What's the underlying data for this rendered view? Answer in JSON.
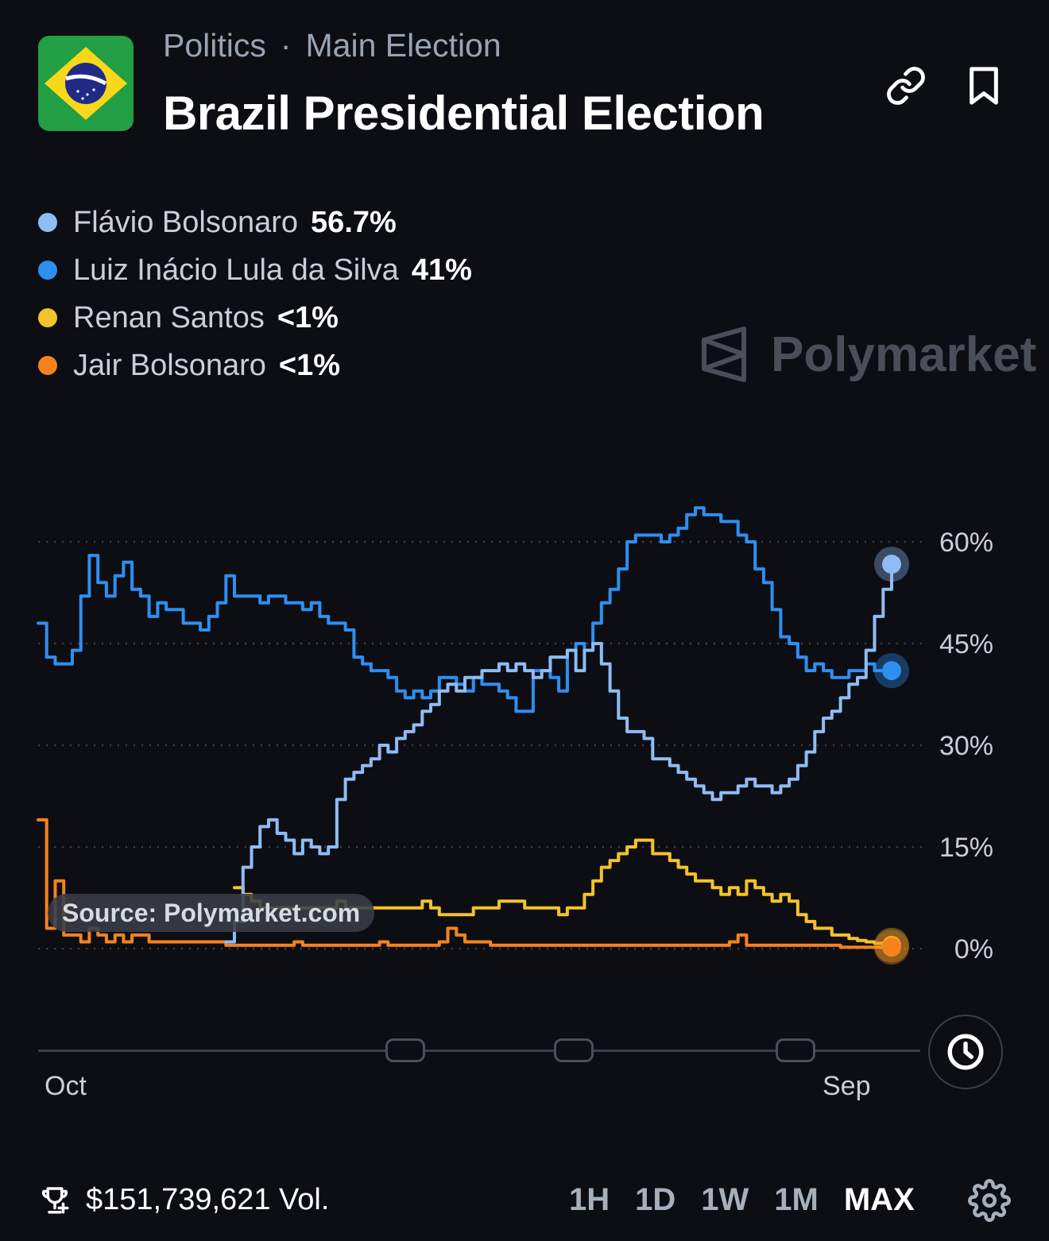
{
  "header": {
    "category": "Politics",
    "separator": "·",
    "subcategory": "Main Election",
    "title": "Brazil Presidential Election",
    "flag_icon": "brazil-flag"
  },
  "actions": {
    "link_icon": "link-icon",
    "bookmark_icon": "bookmark-icon"
  },
  "legend": [
    {
      "name": "Flávio Bolsonaro",
      "value": "56.7%",
      "color": "#8fbcf5"
    },
    {
      "name": "Luiz Inácio Lula da Silva",
      "value": "41%",
      "color": "#2e8ff0"
    },
    {
      "name": "Renan Santos",
      "value": "<1%",
      "color": "#f5c22a"
    },
    {
      "name": "Jair Bolsonaro",
      "value": "<1%",
      "color": "#f5821f"
    }
  ],
  "watermark": "Polymarket",
  "source_label": "Source: Polymarket.com",
  "x_axis": {
    "start_label": "Oct",
    "end_label": "Sep"
  },
  "footer": {
    "volume": "$151,739,621 Vol.",
    "ranges": [
      "1H",
      "1D",
      "1W",
      "1M",
      "MAX"
    ],
    "active_range": "MAX"
  },
  "chart_data": {
    "type": "line",
    "ylim": [
      0,
      70
    ],
    "yticks": [
      0,
      15,
      30,
      45,
      60
    ],
    "ytick_labels": [
      "0%",
      "15%",
      "30%",
      "45%",
      "60%"
    ],
    "grid": true,
    "x": [
      0,
      1,
      2,
      3,
      4,
      5,
      6,
      7,
      8,
      9,
      10,
      11,
      12,
      13,
      14,
      15,
      16,
      17,
      18,
      19,
      20,
      21,
      22,
      23,
      24,
      25,
      26,
      27,
      28,
      29,
      30,
      31,
      32,
      33,
      34,
      35,
      36,
      37,
      38,
      39,
      40,
      41,
      42,
      43,
      44,
      45,
      46,
      47,
      48,
      49,
      50,
      51,
      52,
      53,
      54,
      55,
      56,
      57,
      58,
      59,
      60,
      61,
      62,
      63,
      64,
      65,
      66,
      67,
      68,
      69,
      70,
      71,
      72,
      73,
      74,
      75,
      76,
      77,
      78,
      79,
      80,
      81,
      82,
      83,
      84,
      85,
      86,
      87,
      88,
      89,
      90,
      91,
      92,
      93,
      94,
      95,
      96,
      97,
      98,
      99,
      100
    ],
    "series": [
      {
        "name": "Flávio Bolsonaro",
        "color": "#8fbcf5",
        "values": [
          null,
          null,
          null,
          null,
          null,
          null,
          null,
          null,
          null,
          null,
          null,
          null,
          null,
          null,
          null,
          null,
          null,
          null,
          null,
          null,
          null,
          null,
          1,
          4,
          12,
          15,
          18,
          19,
          17,
          16,
          14,
          16,
          15,
          14,
          15,
          22,
          25,
          26,
          27,
          28,
          30,
          29,
          31,
          32,
          33,
          35,
          36,
          38,
          39,
          38,
          40,
          40,
          41,
          41,
          42,
          41,
          42,
          41,
          40,
          41,
          43,
          43,
          44,
          41,
          44,
          45,
          42,
          38,
          34,
          32,
          32,
          31,
          28,
          28,
          27,
          26,
          25,
          24,
          23,
          22,
          23,
          23,
          24,
          25,
          24,
          24,
          23,
          24,
          25,
          27,
          29,
          32,
          34,
          35,
          37,
          39,
          40,
          44,
          49,
          53,
          56.7
        ]
      },
      {
        "name": "Luiz Inácio Lula da Silva",
        "color": "#2e8ff0",
        "values": [
          48,
          43,
          42,
          42,
          44,
          52,
          58,
          54,
          52,
          55,
          57,
          53,
          52,
          49,
          51,
          50,
          50,
          48,
          48,
          47,
          49,
          51,
          55,
          52,
          52,
          52,
          51,
          52,
          52,
          51,
          51,
          50,
          51,
          49,
          48,
          48,
          47,
          43,
          42,
          41,
          41,
          40,
          38,
          37,
          38,
          37,
          38,
          40,
          40,
          39,
          38,
          40,
          39,
          39,
          38,
          37,
          35,
          35,
          41,
          41,
          40,
          38,
          44,
          45,
          44,
          48,
          51,
          53,
          56,
          60,
          61,
          61,
          61,
          60,
          61,
          62,
          64,
          65,
          64,
          64,
          63,
          63,
          61,
          60,
          56,
          54,
          50,
          46,
          45,
          43,
          41,
          42,
          41,
          40,
          40,
          41,
          41,
          42,
          41,
          41,
          41
        ]
      },
      {
        "name": "Renan Santos",
        "color": "#f5c22a",
        "values": [
          null,
          null,
          null,
          null,
          null,
          null,
          null,
          null,
          null,
          null,
          null,
          null,
          null,
          null,
          null,
          null,
          null,
          null,
          null,
          null,
          null,
          null,
          null,
          9,
          8,
          7,
          6,
          6,
          6,
          6,
          6,
          6,
          6,
          6,
          6,
          7,
          6,
          6,
          6,
          6,
          6,
          6,
          6,
          6,
          6,
          7,
          6,
          5,
          5,
          5,
          5,
          6,
          6,
          6,
          7,
          7,
          7,
          6,
          6,
          6,
          6,
          5,
          6,
          6,
          8,
          10,
          12,
          13,
          14,
          15,
          16,
          16,
          14,
          14,
          13,
          12,
          11,
          10,
          10,
          9,
          8,
          9,
          8,
          10,
          9,
          8,
          7,
          8,
          7,
          5,
          4,
          3,
          3,
          2,
          2,
          1.5,
          1.2,
          1,
          0.8,
          0.6,
          0.5
        ]
      },
      {
        "name": "Jair Bolsonaro",
        "color": "#f5821f",
        "values": [
          19,
          3,
          10,
          2,
          2,
          1,
          3,
          2,
          1,
          2,
          1,
          2,
          2,
          1,
          1,
          1,
          1,
          1,
          1,
          1,
          1,
          1,
          0.5,
          0.5,
          0.5,
          0.5,
          0.5,
          0.5,
          0.5,
          0.5,
          1,
          0.5,
          0.5,
          0.5,
          0.5,
          0.5,
          0.5,
          0.5,
          0.5,
          0.5,
          1,
          0.5,
          0.5,
          0.5,
          0.5,
          0.5,
          0.5,
          1,
          3,
          2,
          1,
          1,
          1,
          0.5,
          0.5,
          0.5,
          0.5,
          0.5,
          0.5,
          0.5,
          0.5,
          0.5,
          0.5,
          0.5,
          0.5,
          0.5,
          0.5,
          0.5,
          0.5,
          0.5,
          0.5,
          0.5,
          0.5,
          0.5,
          0.5,
          0.5,
          0.5,
          0.5,
          0.5,
          0.5,
          0.5,
          1,
          2,
          0.5,
          0.5,
          0.5,
          0.5,
          0.5,
          0.5,
          0.5,
          0.5,
          0.5,
          0.5,
          0.5,
          0.2,
          0.2,
          0.2,
          0.2,
          0.2,
          0.2,
          0.2
        ]
      }
    ]
  }
}
